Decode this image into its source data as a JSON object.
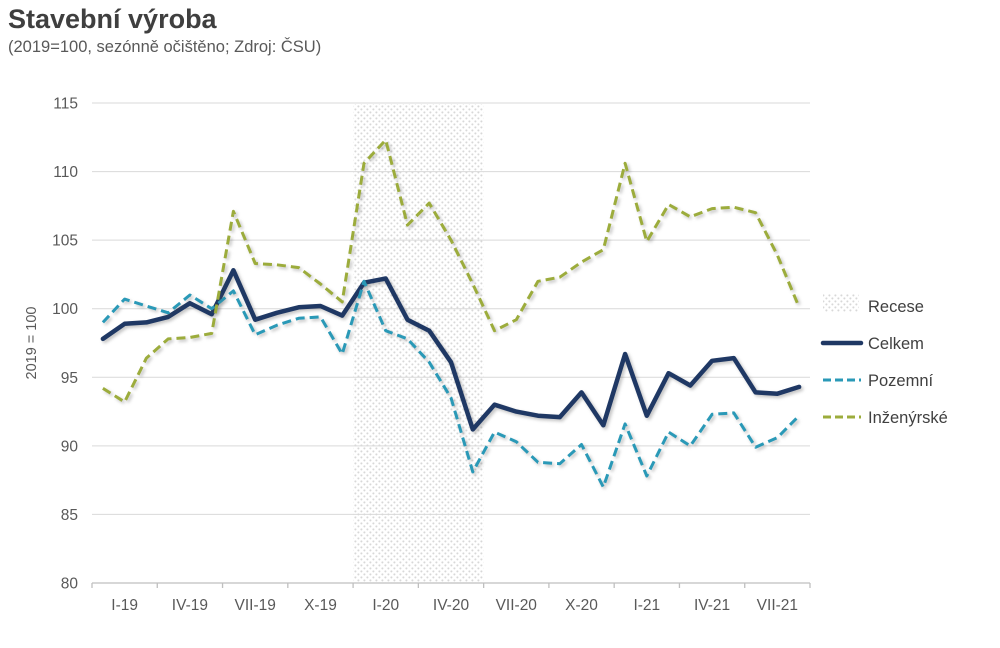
{
  "header": {
    "title": "Stavební výroba",
    "subtitle": "(2019=100, sezónně očištěno; Zdroj: ČSU)"
  },
  "chart_data": {
    "type": "line",
    "title": "Stavební výroba",
    "subtitle": "(2019=100, sezónně očištěno; Zdroj: ČSU)",
    "ylabel": "2019 = 100",
    "ylim": [
      80,
      115
    ],
    "ytick_step": 5,
    "ytick_labels": [
      "80",
      "85",
      "90",
      "95",
      "100",
      "105",
      "110",
      "115"
    ],
    "grid": "horizontal",
    "legend_position": "right",
    "x_months": [
      "I-19",
      "II-19",
      "III-19",
      "IV-19",
      "V-19",
      "VI-19",
      "VII-19",
      "VIII-19",
      "IX-19",
      "X-19",
      "XI-19",
      "XII-19",
      "I-20",
      "II-20",
      "III-20",
      "IV-20",
      "V-20",
      "VI-20",
      "VII-20",
      "VIII-20",
      "IX-20",
      "X-20",
      "XI-20",
      "XII-20",
      "I-21",
      "II-21",
      "III-21",
      "IV-21",
      "V-21",
      "VI-21",
      "VII-21",
      "VIII-21",
      "IX-21"
    ],
    "x_tick_labels": [
      "I-19",
      "IV-19",
      "VII-19",
      "X-19",
      "I-20",
      "IV-20",
      "VII-20",
      "X-20",
      "I-21",
      "IV-21",
      "VII-21"
    ],
    "recession": {
      "label": "Recese",
      "start_month": "I-20",
      "end_month": "VI-20",
      "start_index": 12,
      "end_index": 17
    },
    "series": [
      {
        "name": "Celkem",
        "color": "#1F3864",
        "style": "solid",
        "values": [
          97.8,
          98.9,
          99.0,
          99.4,
          100.4,
          99.6,
          102.8,
          99.2,
          99.7,
          100.1,
          100.2,
          99.5,
          101.9,
          102.2,
          99.2,
          98.4,
          96.1,
          91.2,
          93.0,
          92.5,
          92.2,
          92.1,
          93.9,
          91.5,
          96.7,
          92.2,
          95.3,
          94.4,
          96.2,
          96.4,
          93.9,
          93.8,
          94.3
        ]
      },
      {
        "name": "Pozemní",
        "color": "#2A99B7",
        "style": "dashed",
        "values": [
          99.0,
          100.7,
          100.2,
          99.7,
          101.0,
          100.0,
          101.3,
          98.1,
          98.8,
          99.3,
          99.4,
          96.7,
          102.0,
          98.4,
          97.8,
          96.1,
          93.5,
          88.1,
          91.0,
          90.3,
          88.8,
          88.7,
          90.1,
          87.0,
          91.6,
          87.8,
          91.0,
          90.0,
          92.3,
          92.4,
          89.9,
          90.6,
          92.2
        ]
      },
      {
        "name": "Inženýrské",
        "color": "#9CAC3C",
        "style": "dashed",
        "values": [
          94.2,
          93.2,
          96.4,
          97.8,
          97.9,
          98.2,
          107.1,
          103.3,
          103.2,
          103.0,
          101.8,
          100.5,
          110.6,
          112.3,
          106.1,
          107.7,
          105.0,
          101.8,
          98.4,
          99.2,
          102.0,
          102.3,
          103.4,
          104.3,
          110.6,
          104.9,
          107.6,
          106.7,
          107.3,
          107.4,
          107.0,
          103.9,
          100.1
        ]
      }
    ],
    "colors": {
      "gridline": "#d9d9d9",
      "axis": "#bfbfbf",
      "tick_text": "#595959",
      "legend_text": "#404040",
      "recession_dot": "#d8d8d8"
    }
  }
}
